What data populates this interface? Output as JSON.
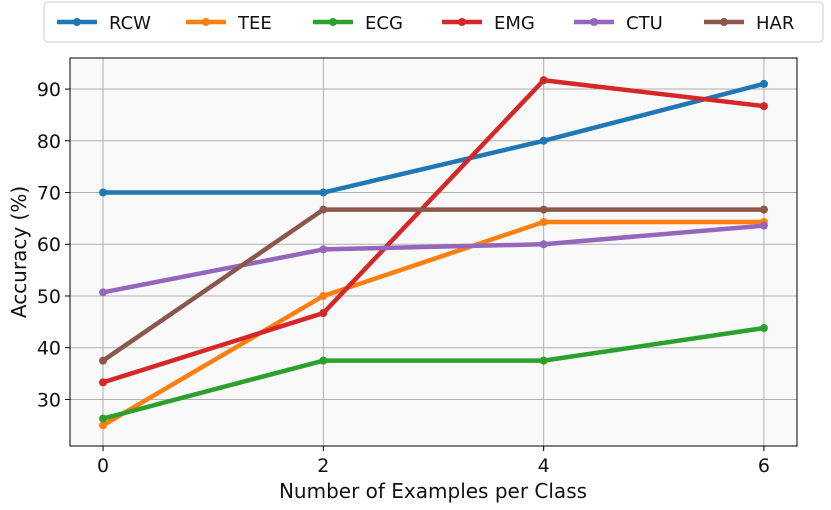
{
  "chart_data": {
    "type": "line",
    "title": "",
    "xlabel": "Number of Examples per Class",
    "ylabel": "Accuracy (%)",
    "x": [
      0,
      2,
      4,
      6
    ],
    "xlim": [
      -0.3,
      6.3
    ],
    "ylim": [
      21,
      96
    ],
    "xticks": [
      0,
      2,
      4,
      6
    ],
    "yticks": [
      30,
      40,
      50,
      60,
      70,
      80,
      90
    ],
    "grid": true,
    "legend_position": "top",
    "series": [
      {
        "name": "RCW",
        "color": "#1f77b4",
        "values": [
          70.0,
          70.0,
          80.0,
          91.0
        ]
      },
      {
        "name": "TEE",
        "color": "#ff7f0e",
        "values": [
          25.0,
          50.0,
          64.3,
          64.3
        ]
      },
      {
        "name": "ECG",
        "color": "#2ca02c",
        "values": [
          26.3,
          37.5,
          37.5,
          43.8
        ]
      },
      {
        "name": "EMG",
        "color": "#d62728",
        "values": [
          33.3,
          46.7,
          91.7,
          86.7
        ]
      },
      {
        "name": "CTU",
        "color": "#9467bd",
        "values": [
          50.7,
          59.0,
          60.0,
          63.6
        ]
      },
      {
        "name": "HAR",
        "color": "#8c564b",
        "values": [
          37.5,
          66.7,
          66.7,
          66.7
        ]
      }
    ]
  }
}
